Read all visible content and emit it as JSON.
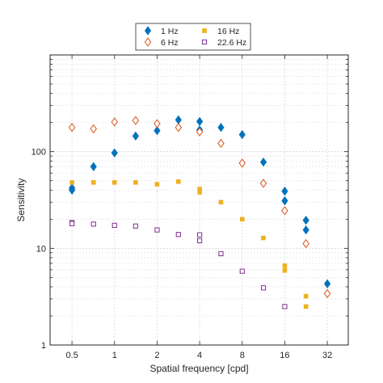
{
  "chart_data": {
    "type": "scatter",
    "title": "",
    "xlabel": "Spatial frequency [cpd]",
    "ylabel": "Sensitivity",
    "x_scale": "log2",
    "y_scale": "log10",
    "xlim": [
      0.35,
      45
    ],
    "ylim": [
      1,
      1000
    ],
    "x_ticks": [
      0.5,
      1,
      2,
      4,
      8,
      16,
      32
    ],
    "x_tick_labels": [
      "0.5",
      "1",
      "2",
      "4",
      "8",
      "16",
      "32"
    ],
    "y_ticks": [
      1,
      10,
      100
    ],
    "y_tick_labels": [
      "1",
      "10",
      "100"
    ],
    "grid": true,
    "legend_position": "top-center",
    "series": [
      {
        "name": "1 Hz",
        "marker": "diamond-filled",
        "color": "#0072BD",
        "points": [
          [
            0.5,
            40
          ],
          [
            0.5,
            42
          ],
          [
            0.71,
            70
          ],
          [
            1,
            97
          ],
          [
            1.41,
            145
          ],
          [
            2,
            165
          ],
          [
            2.83,
            213
          ],
          [
            4,
            205
          ],
          [
            4,
            168
          ],
          [
            5.66,
            178
          ],
          [
            8,
            150
          ],
          [
            11.3,
            78
          ],
          [
            16,
            39
          ],
          [
            16,
            31
          ],
          [
            22.6,
            19.5
          ],
          [
            22.6,
            15.5
          ],
          [
            32,
            4.3
          ]
        ]
      },
      {
        "name": "6 Hz",
        "marker": "diamond-open",
        "color": "#D95319",
        "points": [
          [
            0.5,
            178
          ],
          [
            0.71,
            172
          ],
          [
            1,
            203
          ],
          [
            1.41,
            210
          ],
          [
            2,
            195
          ],
          [
            2.83,
            178
          ],
          [
            4,
            160
          ],
          [
            5.66,
            122
          ],
          [
            8,
            76
          ],
          [
            11.3,
            47
          ],
          [
            16,
            24.5
          ],
          [
            22.6,
            11.2
          ],
          [
            32,
            3.4
          ]
        ]
      },
      {
        "name": "16 Hz",
        "marker": "square-filled",
        "color": "#EDB120",
        "points": [
          [
            0.5,
            48
          ],
          [
            0.71,
            48
          ],
          [
            1,
            48
          ],
          [
            1.41,
            48
          ],
          [
            2,
            46
          ],
          [
            2.83,
            49
          ],
          [
            4,
            41
          ],
          [
            4,
            38
          ],
          [
            5.66,
            30
          ],
          [
            8,
            20
          ],
          [
            11.3,
            12.8
          ],
          [
            16,
            6.6
          ],
          [
            16,
            5.9
          ],
          [
            22.6,
            3.2
          ],
          [
            22.6,
            2.5
          ]
        ]
      },
      {
        "name": "22.6 Hz",
        "marker": "square-open",
        "color": "#7E2F8E",
        "points": [
          [
            0.5,
            18.5
          ],
          [
            0.5,
            18
          ],
          [
            0.71,
            17.8
          ],
          [
            1,
            17.3
          ],
          [
            1.41,
            17
          ],
          [
            2,
            15.5
          ],
          [
            2.83,
            13.9
          ],
          [
            4,
            13.8
          ],
          [
            4,
            12
          ],
          [
            5.66,
            8.8
          ],
          [
            8,
            5.8
          ],
          [
            11.3,
            3.9
          ],
          [
            16,
            2.5
          ]
        ]
      }
    ]
  }
}
